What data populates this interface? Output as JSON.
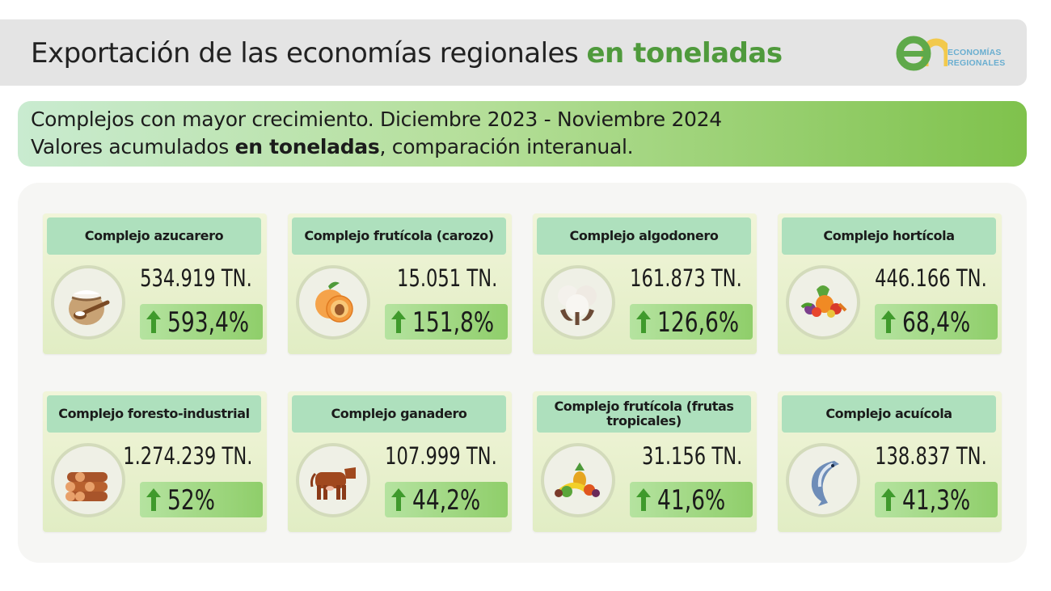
{
  "header": {
    "title_prefix": "Exportación de las economías regionales",
    "title_accent": "en toneladas",
    "logo": {
      "line1": "ECONOMÍAS",
      "line2": "REGIONALES"
    }
  },
  "banner": {
    "line1": "Complejos con mayor crecimiento. Diciembre 2023 - Noviembre 2024",
    "line2_prefix": "Valores acumulados",
    "line2_bold": "en toneladas",
    "line2_suffix": ", comparación interanual."
  },
  "colors": {
    "accent": "#4f9a3c",
    "card_title_bg": "#aee0bd",
    "arrow": "#3f9a2c"
  },
  "cards": [
    {
      "title": "Complejo azucarero",
      "tons": "534.919 TN.",
      "change": "593,4%",
      "icon": "sugar-sack-icon"
    },
    {
      "title": "Complejo frutícola (carozo)",
      "tons": "15.051 TN.",
      "change": "151,8%",
      "icon": "peach-icon"
    },
    {
      "title": "Complejo algodonero",
      "tons": "161.873 TN.",
      "change": "126,6%",
      "icon": "cotton-icon"
    },
    {
      "title": "Complejo hortícola",
      "tons": "446.166 TN.",
      "change": "68,4%",
      "icon": "vegetables-icon"
    },
    {
      "title": "Complejo foresto-industrial",
      "tons": "1.274.239 TN.",
      "change": "52%",
      "icon": "logs-icon"
    },
    {
      "title": "Complejo ganadero",
      "tons": "107.999 TN.",
      "change": "44,2%",
      "icon": "cow-icon"
    },
    {
      "title": "Complejo frutícola (frutas tropicales)",
      "tons": "31.156 TN.",
      "change": "41,6%",
      "icon": "tropical-fruits-icon"
    },
    {
      "title": "Complejo acuícola",
      "tons": "138.837 TN.",
      "change": "41,3%",
      "icon": "fish-icon"
    }
  ]
}
